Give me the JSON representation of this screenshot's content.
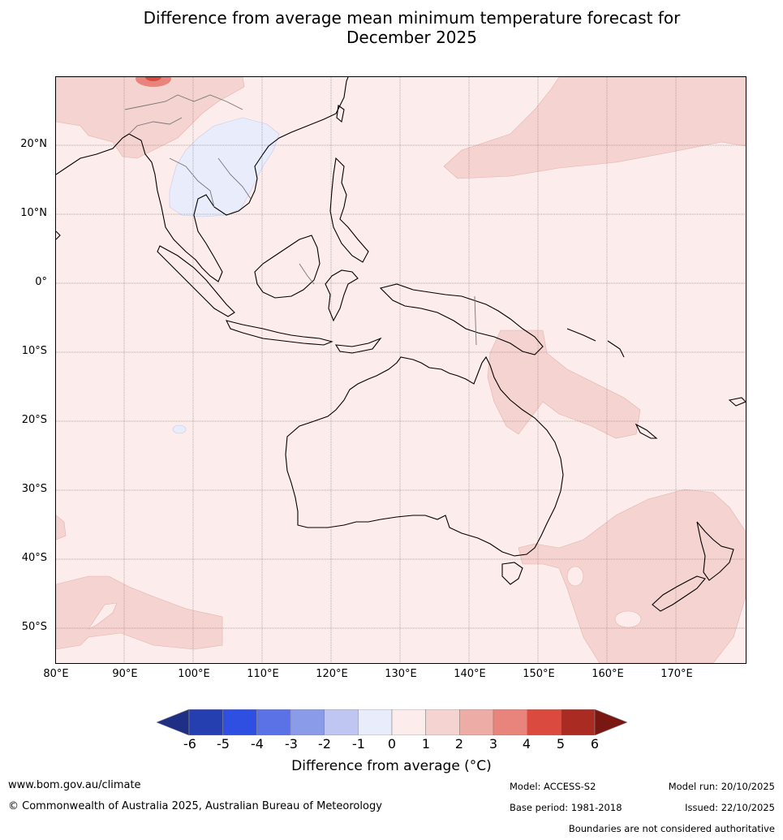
{
  "title_line1": "Difference from average mean minimum temperature forecast for",
  "title_line2": "December 2025",
  "lat_labels": [
    "20°N",
    "10°N",
    "0°",
    "10°S",
    "20°S",
    "30°S",
    "40°S",
    "50°S"
  ],
  "lon_labels": [
    "80°E",
    "90°E",
    "100°E",
    "110°E",
    "120°E",
    "130°E",
    "140°E",
    "150°E",
    "160°E",
    "170°E"
  ],
  "colorbar": {
    "ticks": [
      "-6",
      "-5",
      "-4",
      "-3",
      "-2",
      "-1",
      "0",
      "1",
      "2",
      "3",
      "4",
      "5",
      "6"
    ],
    "label": "Difference from average (°C)",
    "colors": [
      "#1f2f86",
      "#263fb0",
      "#2f4fe3",
      "#5a72e6",
      "#8a9be9",
      "#bfc6f2",
      "#e9ecfb",
      "#fceceb",
      "#f5d3d0",
      "#edaca6",
      "#e8847b",
      "#db4a3f",
      "#a92b22",
      "#7a1712"
    ]
  },
  "footer": {
    "website": "www.bom.gov.au/climate",
    "copyright": "© Commonwealth of Australia 2025, Australian Bureau of Meteorology",
    "model": "Model: ACCESS-S2",
    "model_run": "Model run: 20/10/2025",
    "base_period": "Base period: 1981-2018",
    "issued": "Issued: 22/10/2025",
    "disclaimer": "Boundaries are not considered authoritative"
  }
}
